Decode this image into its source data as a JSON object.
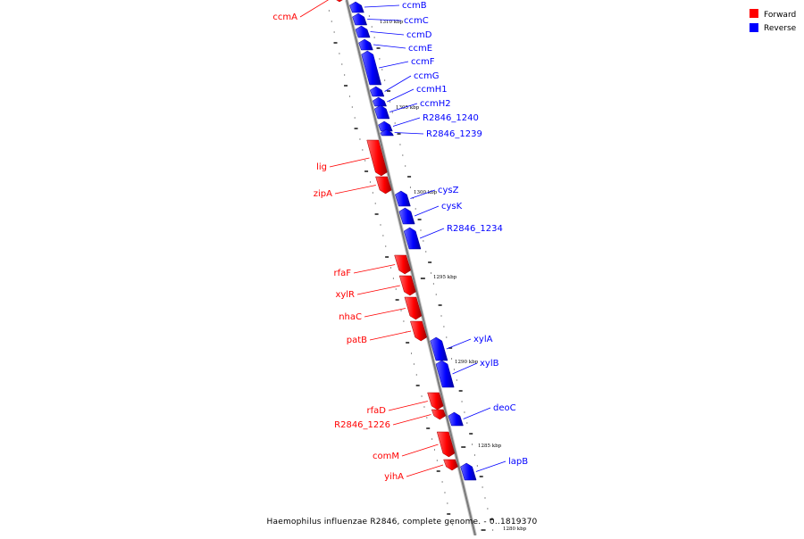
{
  "caption": "Haemophilus influenzae R2846, complete genome. - 0..1819370",
  "legend": [
    {
      "label": "Forward",
      "color": "#ff0000"
    },
    {
      "label": "Reverse",
      "color": "#0000ff"
    }
  ],
  "colors": {
    "forward": "#ff0000",
    "reverse": "#0000ff",
    "backbone": "#808080"
  },
  "ticks": [
    {
      "label": "1310 kbp",
      "pos_kbp": 1310
    },
    {
      "label": "1305 kbp",
      "pos_kbp": 1305
    },
    {
      "label": "1300 kbp",
      "pos_kbp": 1300
    },
    {
      "label": "1295 kbp",
      "pos_kbp": 1295
    },
    {
      "label": "1290 kbp",
      "pos_kbp": 1290
    },
    {
      "label": "1285 kbp",
      "pos_kbp": 1285
    },
    {
      "label": "1280 kbp",
      "pos_kbp": 1280
    }
  ],
  "genes": [
    {
      "name": "ccmA",
      "strand": "forward"
    },
    {
      "name": "ccmB",
      "strand": "reverse"
    },
    {
      "name": "ccmC",
      "strand": "reverse"
    },
    {
      "name": "ccmD",
      "strand": "reverse"
    },
    {
      "name": "ccmE",
      "strand": "reverse"
    },
    {
      "name": "ccmF",
      "strand": "reverse"
    },
    {
      "name": "ccmG",
      "strand": "reverse"
    },
    {
      "name": "ccmH1",
      "strand": "reverse"
    },
    {
      "name": "ccmH2",
      "strand": "reverse"
    },
    {
      "name": "R2846_1240",
      "strand": "reverse"
    },
    {
      "name": "R2846_1239",
      "strand": "reverse"
    },
    {
      "name": "lig",
      "strand": "forward"
    },
    {
      "name": "zipA",
      "strand": "forward"
    },
    {
      "name": "cysZ",
      "strand": "reverse"
    },
    {
      "name": "cysK",
      "strand": "reverse"
    },
    {
      "name": "R2846_1234",
      "strand": "reverse"
    },
    {
      "name": "rfaF",
      "strand": "forward"
    },
    {
      "name": "xylR",
      "strand": "forward"
    },
    {
      "name": "nhaC",
      "strand": "forward"
    },
    {
      "name": "patB",
      "strand": "forward"
    },
    {
      "name": "xylA",
      "strand": "reverse"
    },
    {
      "name": "xylB",
      "strand": "reverse"
    },
    {
      "name": "rfaD",
      "strand": "forward"
    },
    {
      "name": "R2846_1226",
      "strand": "forward"
    },
    {
      "name": "deoC",
      "strand": "reverse"
    },
    {
      "name": "comM",
      "strand": "forward"
    },
    {
      "name": "yihA",
      "strand": "forward"
    },
    {
      "name": "lapB",
      "strand": "reverse"
    }
  ]
}
